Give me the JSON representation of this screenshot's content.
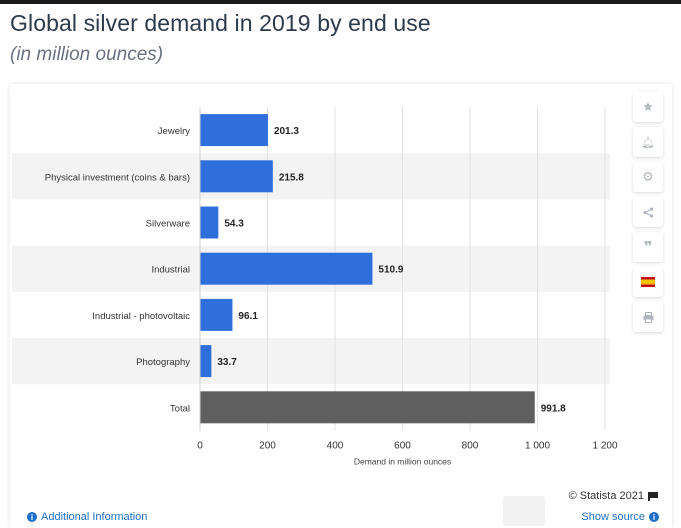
{
  "header": {
    "title": "Global silver demand in 2019 by end use",
    "subtitle": "(in million ounces)"
  },
  "chart_data": {
    "type": "bar",
    "orientation": "horizontal",
    "categories": [
      "Jewelry",
      "Physical investment (coins & bars)",
      "Silverware",
      "Industrial",
      "Industrial - photovoltaic",
      "Photography",
      "Total"
    ],
    "values": [
      201.3,
      215.8,
      54.3,
      510.9,
      96.1,
      33.7,
      991.8
    ],
    "value_labels": [
      "201.3",
      "215.8",
      "54.3",
      "510.9",
      "96.1",
      "33.7",
      "991.8"
    ],
    "xlabel": "Demand in million ounces",
    "ylabel": "",
    "xlim": [
      0,
      1200
    ],
    "ticks": [
      0,
      200,
      400,
      600,
      800,
      1000,
      1200
    ],
    "tick_labels": [
      "0",
      "200",
      "400",
      "600",
      "800",
      "1 000",
      "1 200"
    ],
    "colors": {
      "bar": "#2f6fdb",
      "total_bar": "#5f5f5f"
    },
    "grid": true
  },
  "tools": [
    {
      "name": "star-icon",
      "glyph": "★"
    },
    {
      "name": "bell-icon",
      "glyph": "🔔"
    },
    {
      "name": "gear-icon",
      "glyph": "⚙"
    },
    {
      "name": "share-icon",
      "glyph": "<"
    },
    {
      "name": "quote-icon",
      "glyph": "❞"
    },
    {
      "name": "spain-flag-icon",
      "glyph": ""
    },
    {
      "name": "print-icon",
      "glyph": "⎙"
    }
  ],
  "footer": {
    "additional_info": "Additional Information",
    "copyright": "© Statista 2021",
    "show_source": "Show source"
  }
}
